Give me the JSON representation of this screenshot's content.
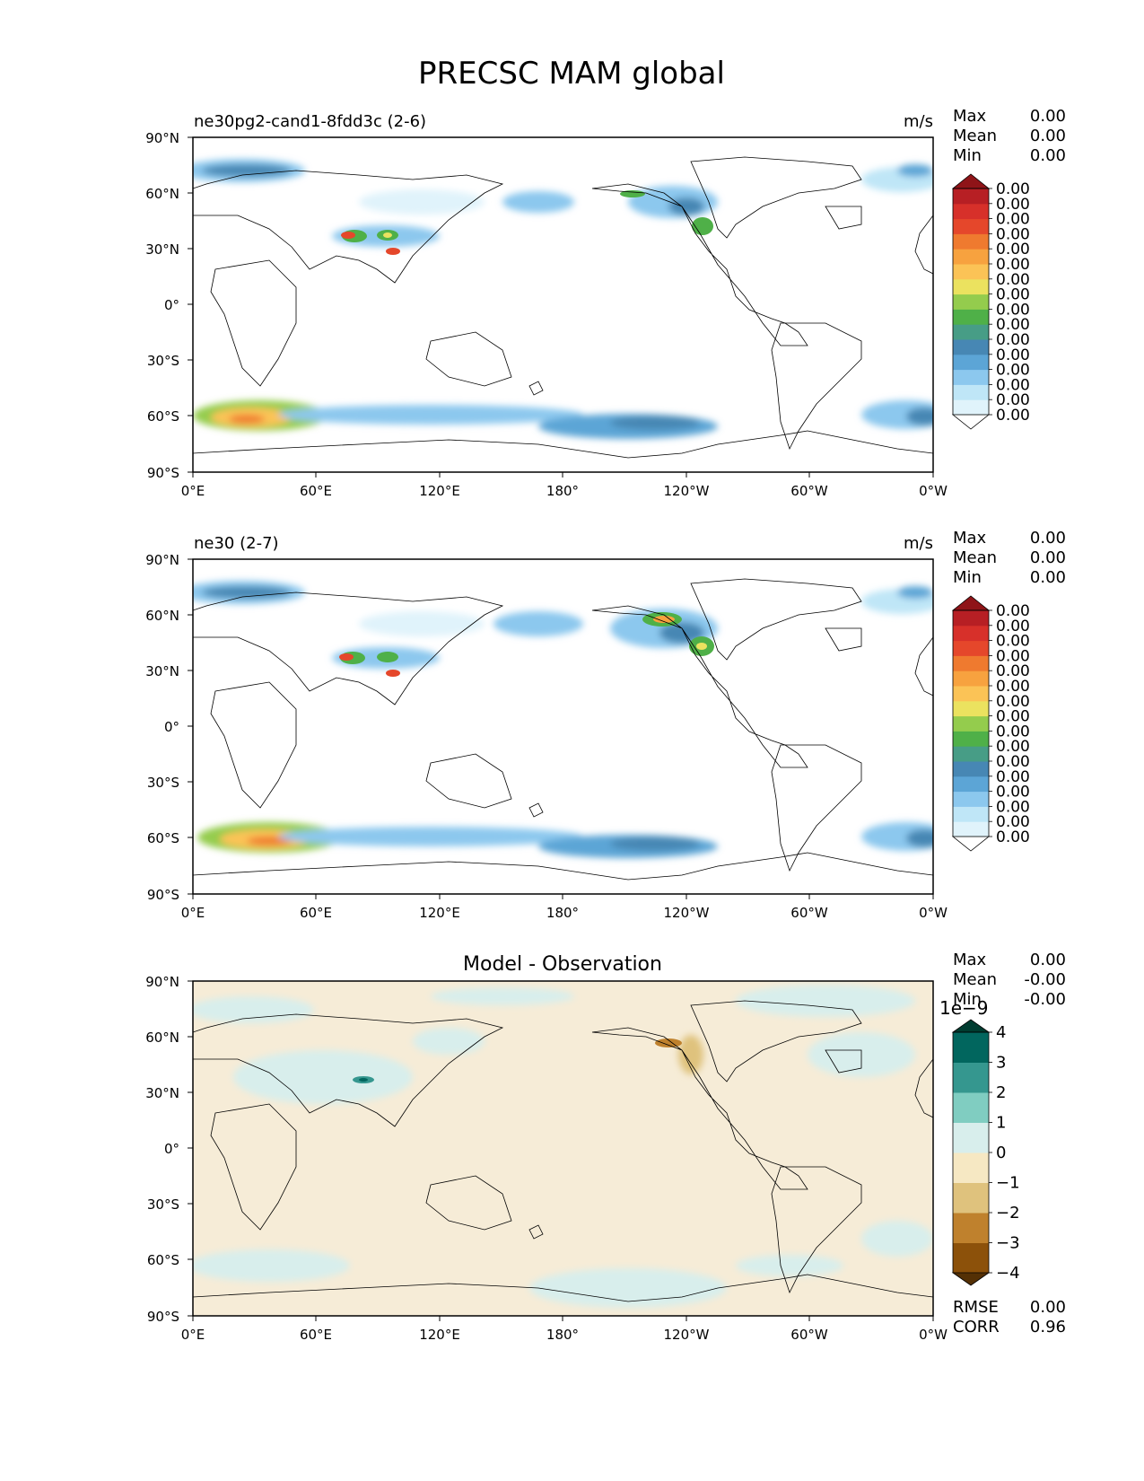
{
  "title": "PRECSC MAM global",
  "lat_ticks": [
    "90°N",
    "60°N",
    "30°N",
    "0°",
    "30°S",
    "60°S",
    "90°S"
  ],
  "lon_ticks": [
    "0°E",
    "60°E",
    "120°E",
    "180°",
    "120°W",
    "60°W",
    "0°W"
  ],
  "panels": [
    {
      "title_left": "ne30pg2-cand1-8fdd3c (2-6)",
      "title_center": "",
      "units": "m/s",
      "stats": [
        {
          "label": "Max",
          "value": "0.00"
        },
        {
          "label": "Mean",
          "value": "0.00"
        },
        {
          "label": "Min",
          "value": "0.00"
        }
      ],
      "colorbar": {
        "colors": [
          "#ffffff",
          "#e0f3fb",
          "#bfe6f7",
          "#8cc8ee",
          "#5ca5d6",
          "#4787b4",
          "#479d86",
          "#4fb048",
          "#94cc4d",
          "#ebe25f",
          "#fbc356",
          "#f7a23f",
          "#ef7a2f",
          "#e5472b",
          "#d7302a",
          "#b71f24",
          "#8f1418"
        ],
        "tick_labels": [
          "0.00",
          "0.00",
          "0.00",
          "0.00",
          "0.00",
          "0.00",
          "0.00",
          "0.00",
          "0.00",
          "0.00",
          "0.00",
          "0.00",
          "0.00",
          "0.00",
          "0.00",
          "0.00"
        ],
        "offset_label": ""
      },
      "bottom_stats": []
    },
    {
      "title_left": "ne30 (2-7)",
      "title_center": "",
      "units": "m/s",
      "stats": [
        {
          "label": "Max",
          "value": "0.00"
        },
        {
          "label": "Mean",
          "value": "0.00"
        },
        {
          "label": "Min",
          "value": "0.00"
        }
      ],
      "colorbar": {
        "colors": [
          "#ffffff",
          "#e0f3fb",
          "#bfe6f7",
          "#8cc8ee",
          "#5ca5d6",
          "#4787b4",
          "#479d86",
          "#4fb048",
          "#94cc4d",
          "#ebe25f",
          "#fbc356",
          "#f7a23f",
          "#ef7a2f",
          "#e5472b",
          "#d7302a",
          "#b71f24",
          "#8f1418"
        ],
        "tick_labels": [
          "0.00",
          "0.00",
          "0.00",
          "0.00",
          "0.00",
          "0.00",
          "0.00",
          "0.00",
          "0.00",
          "0.00",
          "0.00",
          "0.00",
          "0.00",
          "0.00",
          "0.00",
          "0.00"
        ],
        "offset_label": ""
      },
      "bottom_stats": []
    },
    {
      "title_left": "",
      "title_center": "Model - Observation",
      "units": "",
      "stats": [
        {
          "label": "Max",
          "value": "0.00"
        },
        {
          "label": "Mean",
          "value": "-0.00"
        },
        {
          "label": "Min",
          "value": "-0.00"
        }
      ],
      "colorbar": {
        "colors": [
          "#543005",
          "#8c510a",
          "#bf812d",
          "#dfc27d",
          "#f6e8c3",
          "#d8eeec",
          "#80cdc1",
          "#35978f",
          "#01665e",
          "#003c30"
        ],
        "tick_labels": [
          "−4",
          "−3",
          "−2",
          "−1",
          "0",
          "1",
          "2",
          "3",
          "4"
        ],
        "offset_label": "1e−9"
      },
      "bottom_stats": [
        {
          "label": "RMSE",
          "value": "0.00"
        },
        {
          "label": "CORR",
          "value": "0.96"
        }
      ]
    }
  ]
}
